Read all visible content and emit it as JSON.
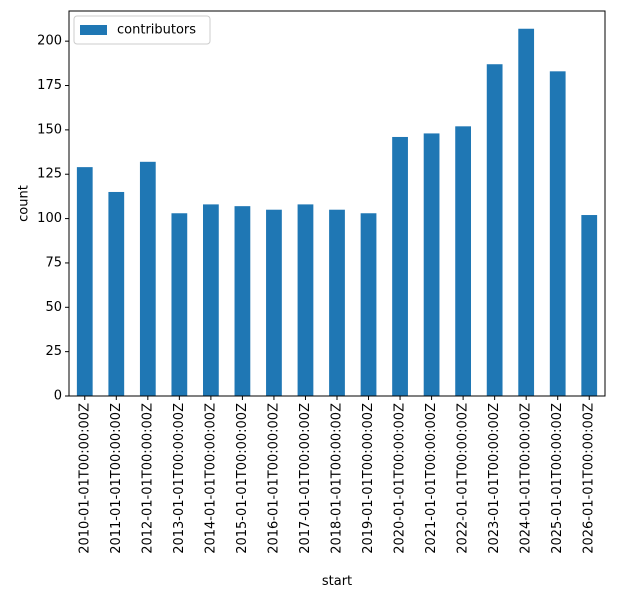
{
  "chart_data": {
    "type": "bar",
    "title": "",
    "xlabel": "start",
    "ylabel": "count",
    "categories": [
      "2010-01-01T00:00:00Z",
      "2011-01-01T00:00:00Z",
      "2012-01-01T00:00:00Z",
      "2013-01-01T00:00:00Z",
      "2014-01-01T00:00:00Z",
      "2015-01-01T00:00:00Z",
      "2016-01-01T00:00:00Z",
      "2017-01-01T00:00:00Z",
      "2018-01-01T00:00:00Z",
      "2019-01-01T00:00:00Z",
      "2020-01-01T00:00:00Z",
      "2021-01-01T00:00:00Z",
      "2022-01-01T00:00:00Z",
      "2023-01-01T00:00:00Z",
      "2024-01-01T00:00:00Z",
      "2025-01-01T00:00:00Z",
      "2026-01-01T00:00:00Z"
    ],
    "series": [
      {
        "name": "contributors",
        "color": "#1f77b4",
        "values": [
          129,
          115,
          132,
          103,
          108,
          107,
          105,
          108,
          105,
          103,
          146,
          148,
          152,
          187,
          207,
          183,
          102
        ]
      }
    ],
    "yticks": [
      "0",
      "25",
      "50",
      "75",
      "100",
      "125",
      "150",
      "175",
      "200"
    ],
    "ylim": [
      0,
      217
    ],
    "grid": false,
    "legend_position": "top-left"
  }
}
